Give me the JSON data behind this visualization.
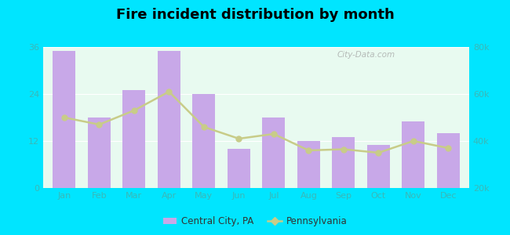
{
  "title": "Fire incident distribution by month",
  "months": [
    "Jan",
    "Feb",
    "Mar",
    "Apr",
    "May",
    "Jun",
    "Jul",
    "Aug",
    "Sep",
    "Oct",
    "Nov",
    "Dec"
  ],
  "bar_values": [
    35,
    18,
    25,
    35,
    24,
    10,
    18,
    12,
    13,
    11,
    17,
    14
  ],
  "line_values": [
    50000,
    47000,
    53000,
    61000,
    46000,
    41000,
    43000,
    36000,
    36500,
    35000,
    40000,
    37000
  ],
  "bar_color": "#c8a8e8",
  "line_color": "#c8cc88",
  "bar_alpha": 1.0,
  "ylim_left": [
    0,
    36
  ],
  "ylim_right": [
    20000,
    80000
  ],
  "yticks_left": [
    0,
    12,
    24,
    36
  ],
  "yticks_right": [
    20000,
    40000,
    60000,
    80000
  ],
  "ytick_labels_right": [
    "20k",
    "40k",
    "60k",
    "80k"
  ],
  "background_color": "#e8faf0",
  "outer_background": "#00e5ff",
  "grid_color": "#ffffff",
  "tick_color": "#3ab8b8",
  "legend_label_bar": "Central City, PA",
  "legend_label_line": "Pennsylvania",
  "watermark": "City-Data.com"
}
